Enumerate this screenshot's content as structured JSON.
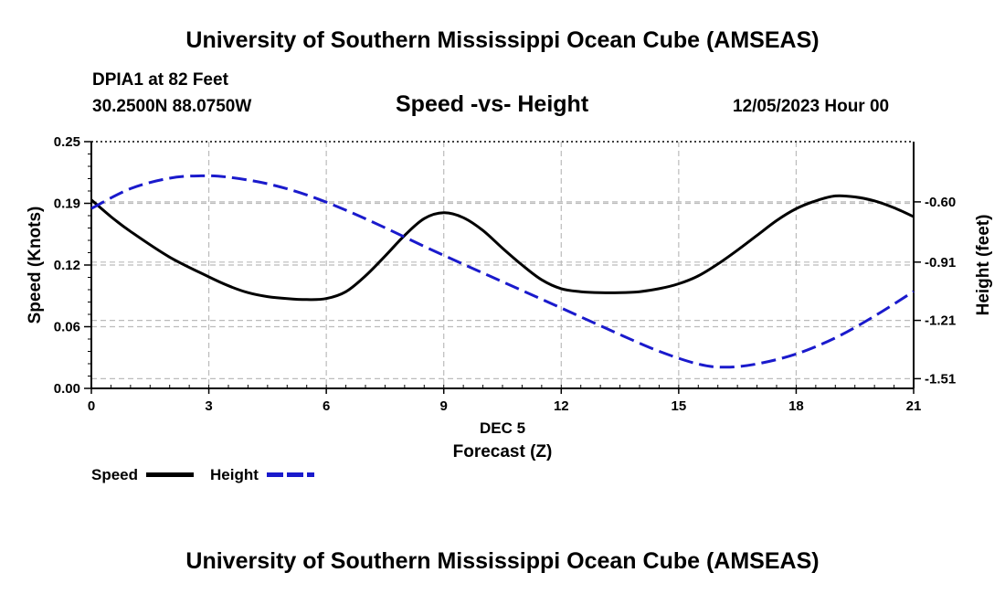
{
  "header": {
    "title": "University of Southern Mississippi Ocean Cube (AMSEAS)",
    "station": "DPIA1 at 82 Feet",
    "coords": "30.2500N  88.0750W",
    "date": "12/05/2023 Hour 00",
    "footer_title": "University of Southern Mississippi Ocean Cube (AMSEAS)"
  },
  "chart_data": {
    "type": "line",
    "title": "Speed -vs- Height",
    "xlabel": "Forecast (Z)",
    "xsublabel": "DEC 5",
    "ylabel": "Speed (Knots)",
    "y2label": "Height (feet)",
    "xlim": [
      0,
      21
    ],
    "ylim": [
      0,
      0.25
    ],
    "y2lim": [
      -1.56,
      -0.29
    ],
    "x_ticks": [
      0,
      3,
      6,
      9,
      12,
      15,
      18,
      21
    ],
    "x_tick_labels": [
      "0",
      "3",
      "6",
      "9",
      "12",
      "15",
      "18",
      "21"
    ],
    "y_ticks": [
      0,
      0.0625,
      0.125,
      0.1875,
      0.25
    ],
    "y_tick_labels": [
      "0.00",
      "0.06",
      "0.12",
      "0.19",
      "0.25"
    ],
    "y2_ticks": [
      -0.6,
      -0.91,
      -1.21,
      -1.51
    ],
    "y2_tick_labels": [
      "-0.60",
      "-0.91",
      "-1.21",
      "-1.51"
    ],
    "grid": true,
    "series": [
      {
        "name": "Speed",
        "axis": "left",
        "color": "#000000",
        "dash": "solid",
        "x": [
          0,
          0.5,
          1,
          2,
          3,
          3.5,
          4,
          4.5,
          5,
          5.5,
          6,
          6.5,
          7,
          7.5,
          8,
          8.5,
          9,
          9.5,
          10,
          10.5,
          11,
          11.5,
          12,
          12.5,
          13,
          13.5,
          14,
          14.5,
          15,
          15.5,
          16,
          16.5,
          17,
          17.5,
          18,
          18.5,
          19,
          19.5,
          20,
          20.5,
          21
        ],
        "y": [
          0.191,
          0.174,
          0.159,
          0.133,
          0.113,
          0.104,
          0.097,
          0.093,
          0.091,
          0.09,
          0.091,
          0.098,
          0.114,
          0.134,
          0.155,
          0.172,
          0.178,
          0.173,
          0.16,
          0.142,
          0.125,
          0.11,
          0.101,
          0.098,
          0.097,
          0.097,
          0.098,
          0.101,
          0.106,
          0.114,
          0.126,
          0.14,
          0.155,
          0.17,
          0.182,
          0.19,
          0.195,
          0.194,
          0.19,
          0.183,
          0.174
        ]
      },
      {
        "name": "Height",
        "axis": "right",
        "color": "#1a1acc",
        "dash": "dashed",
        "x": [
          0,
          1,
          2,
          2.8,
          3.5,
          4.5,
          5.5,
          6.5,
          7.5,
          8.5,
          9.5,
          10.5,
          11.5,
          12.5,
          13.5,
          14.5,
          15.5,
          16.2,
          17,
          18,
          19,
          20,
          21
        ],
        "y": [
          -0.634,
          -0.532,
          -0.478,
          -0.466,
          -0.473,
          -0.507,
          -0.564,
          -0.643,
          -0.733,
          -0.829,
          -0.921,
          -1.011,
          -1.101,
          -1.192,
          -1.283,
          -1.369,
          -1.435,
          -1.451,
          -1.434,
          -1.383,
          -1.3,
          -1.188,
          -1.061
        ]
      }
    ],
    "legend": [
      {
        "label": "Speed",
        "color": "#000000",
        "dash": "solid"
      },
      {
        "label": "Height",
        "color": "#1a1acc",
        "dash": "dashed"
      }
    ],
    "legend_position": "bottom-left"
  }
}
